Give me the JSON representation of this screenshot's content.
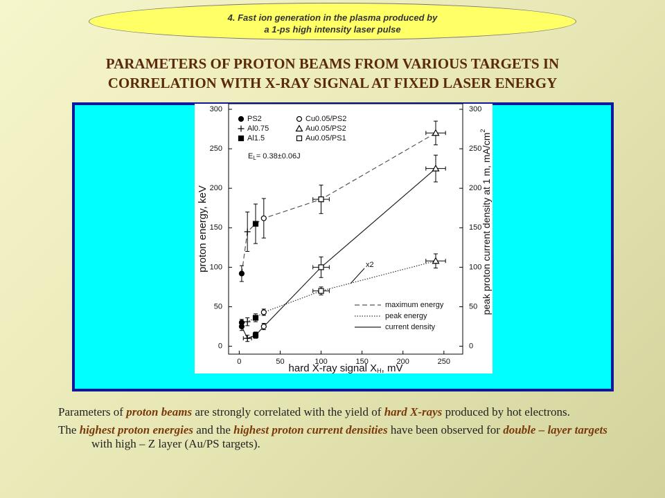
{
  "header": {
    "banner": [
      "4. Fast ion generation in the plasma produced by",
      "a 1-ps high intensity laser pulse"
    ],
    "title": [
      "PARAMETERS OF PROTON BEAMS FROM VARIOUS TARGETS IN",
      "CORRELATION WITH X-RAY SIGNAL AT FIXED LASER ENERGY"
    ]
  },
  "chart_data": {
    "type": "scatter",
    "xlabel": [
      "hard X-ray signal X",
      "H",
      ", mV"
    ],
    "ylabel": "proton energy, keV",
    "y2label": [
      "peak proton current density at 1 m, mA/cm",
      "2"
    ],
    "annotations": {
      "energy": [
        "E",
        "L",
        "= 0.38±0.06J"
      ],
      "scale": "x2"
    },
    "xlim": [
      -13,
      273
    ],
    "xticks": [
      0,
      50,
      100,
      150,
      200,
      250
    ],
    "ylim": [
      -10,
      307
    ],
    "yticks": [
      0,
      50,
      100,
      150,
      200,
      250,
      300
    ],
    "y2lim": [
      -10,
      307
    ],
    "y2ticks": [
      0,
      50,
      100,
      150,
      200,
      250,
      300
    ],
    "targets": [
      {
        "name": "PS2",
        "marker": "filled-circle"
      },
      {
        "name": "Al0.75",
        "marker": "plus"
      },
      {
        "name": "Al1.5",
        "marker": "filled-square"
      },
      {
        "name": "Cu0.05/PS2",
        "marker": "open-circle"
      },
      {
        "name": "Au0.05/PS2",
        "marker": "open-triangle"
      },
      {
        "name": "Au0.05/PS1",
        "marker": "open-square"
      }
    ],
    "series": [
      {
        "name": "maximum energy",
        "style": "dashed",
        "color": "#555555",
        "x": [
          3,
          10,
          20,
          30,
          100,
          240
        ],
        "values": [
          92,
          145,
          155,
          162,
          186,
          270
        ],
        "errors": [
          10,
          25,
          25,
          25,
          18,
          15
        ],
        "xerrors": [
          0,
          0,
          0,
          0,
          10,
          12
        ],
        "markers": [
          "filled-circle",
          "plus",
          "filled-square",
          "open-circle",
          "open-square",
          "open-triangle"
        ]
      },
      {
        "name": "peak energy",
        "style": "dotted",
        "color": "#333333",
        "x": [
          3,
          10,
          20,
          30,
          100,
          240
        ],
        "values": [
          30,
          31,
          36,
          43,
          70,
          108
        ],
        "errors": [
          4,
          5,
          5,
          4,
          5,
          9
        ],
        "xerrors": [
          0,
          0,
          0,
          0,
          10,
          12
        ],
        "markers": [
          "filled-circle",
          "plus",
          "filled-square",
          "open-circle",
          "open-square",
          "open-triangle"
        ]
      },
      {
        "name": "current density",
        "style": "solid",
        "color": "#222222",
        "axis": "y2",
        "x": [
          3,
          10,
          20,
          30,
          100,
          240
        ],
        "values": [
          25,
          10,
          14,
          25,
          100,
          225
        ],
        "errors": [
          5,
          4,
          4,
          4,
          13,
          17
        ],
        "xerrors": [
          0,
          5,
          0,
          0,
          10,
          12
        ],
        "markers": [
          "filled-circle",
          "plus",
          "filled-square",
          "open-circle",
          "open-square",
          "open-triangle"
        ]
      }
    ]
  },
  "body": [
    [
      {
        "text": "Parameters of ",
        "em": false
      },
      {
        "text": "proton beams",
        "em": true
      },
      {
        "text": " are strongly correlated with the yield of ",
        "em": false
      },
      {
        "text": "hard X-rays",
        "em": true
      },
      {
        "text": " produced by hot electrons.",
        "em": false
      }
    ],
    [
      {
        "text": "The ",
        "em": false
      },
      {
        "text": "highest proton energies",
        "em": true
      },
      {
        "text": " and the ",
        "em": false
      },
      {
        "text": "highest proton current densities",
        "em": true
      },
      {
        "text": " have been observed for ",
        "em": false
      },
      {
        "text": "double – layer targets",
        "em": true
      },
      {
        "text": " with high – Z layer (Au/PS targets).",
        "em": false
      }
    ]
  ]
}
